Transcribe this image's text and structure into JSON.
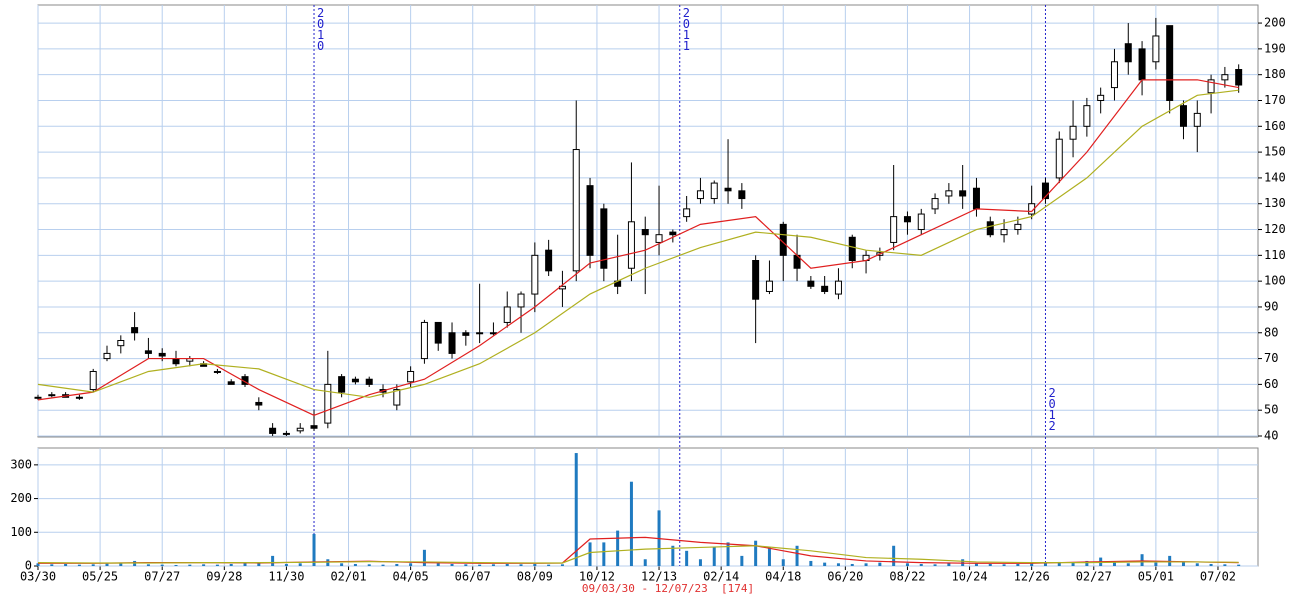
{
  "chart_data": [
    {
      "type": "candlestick",
      "grid": true,
      "up_color": "#ffffff",
      "down_color": "#000000",
      "x": [
        0,
        2,
        4,
        6,
        8,
        10,
        12,
        14,
        16,
        18,
        20,
        22,
        24,
        26,
        28,
        30,
        32,
        34,
        36,
        38,
        40,
        42,
        44,
        46,
        48,
        50,
        52,
        54,
        56,
        58,
        60,
        62,
        64,
        66,
        68,
        70,
        72,
        74,
        76,
        78,
        80,
        82,
        84,
        86,
        88,
        90,
        92,
        94,
        96,
        98,
        100,
        102,
        104,
        106,
        108,
        110,
        112,
        114,
        116,
        118,
        120,
        122,
        124,
        126,
        128,
        130,
        132,
        134,
        136,
        138,
        140,
        142,
        144,
        146,
        148,
        150,
        152,
        154,
        156,
        158,
        160,
        162,
        164,
        166,
        168,
        170,
        172,
        174
      ],
      "open": [
        55,
        56,
        56,
        55,
        58,
        70,
        75,
        82,
        73,
        72,
        70,
        69,
        68,
        65,
        61,
        63,
        53,
        43,
        41,
        42,
        44,
        45,
        63,
        62,
        62,
        58,
        52,
        61,
        70,
        84,
        80,
        80,
        80,
        80,
        84,
        90,
        95,
        112,
        97,
        104,
        137,
        128,
        100,
        105,
        120,
        115,
        119,
        125,
        132,
        132,
        136,
        135,
        108,
        96,
        122,
        110,
        100,
        98,
        95,
        117,
        108,
        110,
        115,
        125,
        120,
        128,
        133,
        135,
        136,
        123,
        118,
        120,
        126,
        138,
        140,
        155,
        160,
        170,
        175,
        192,
        190,
        185,
        199,
        168,
        160,
        173,
        178,
        182
      ],
      "high": [
        56,
        57,
        57,
        56,
        66,
        75,
        79,
        88,
        78,
        74,
        73,
        71,
        69,
        66,
        62,
        64,
        55,
        45,
        42,
        45,
        50,
        73,
        64,
        63,
        63,
        60,
        60,
        67,
        85,
        84,
        84,
        81,
        99,
        84,
        96,
        96,
        115,
        116,
        104,
        170,
        140,
        130,
        118,
        146,
        125,
        137,
        120,
        133,
        140,
        139,
        155,
        138,
        110,
        108,
        123,
        118,
        102,
        102,
        105,
        118,
        112,
        113,
        145,
        127,
        128,
        134,
        138,
        145,
        140,
        125,
        124,
        125,
        137,
        140,
        158,
        170,
        171,
        175,
        190,
        200,
        193,
        202,
        199,
        170,
        170,
        180,
        183,
        184
      ],
      "low": [
        54,
        55,
        55,
        54,
        57,
        69,
        72,
        77,
        70,
        69,
        67,
        67,
        67,
        64,
        60,
        59,
        50,
        40,
        40,
        41,
        42,
        43,
        55,
        60,
        59,
        55,
        50,
        59,
        68,
        73,
        70,
        75,
        76,
        79,
        82,
        80,
        88,
        102,
        90,
        100,
        105,
        100,
        95,
        100,
        95,
        110,
        115,
        123,
        130,
        130,
        130,
        128,
        76,
        95,
        100,
        100,
        97,
        95,
        93,
        105,
        103,
        108,
        112,
        118,
        118,
        126,
        130,
        128,
        125,
        117,
        115,
        118,
        124,
        130,
        138,
        148,
        156,
        165,
        170,
        180,
        172,
        182,
        165,
        155,
        150,
        165,
        175,
        173
      ],
      "close": [
        55,
        56,
        55,
        55,
        65,
        72,
        77,
        80,
        72,
        71,
        68,
        70,
        67,
        65,
        60,
        60,
        52,
        41,
        41,
        43,
        43,
        60,
        57,
        61,
        60,
        57,
        58,
        65,
        84,
        76,
        72,
        79,
        80,
        80,
        90,
        95,
        110,
        104,
        98,
        151,
        110,
        105,
        98,
        123,
        118,
        118,
        118,
        128,
        135,
        138,
        135,
        132,
        93,
        100,
        110,
        105,
        98,
        96,
        100,
        108,
        110,
        111,
        125,
        123,
        126,
        132,
        135,
        133,
        128,
        118,
        120,
        122,
        130,
        132,
        155,
        160,
        168,
        172,
        185,
        185,
        178,
        195,
        170,
        160,
        165,
        178,
        180,
        176
      ],
      "moving_averages": [
        {
          "color": "#e02020",
          "x": [
            0,
            8,
            16,
            24,
            32,
            40,
            48,
            56,
            64,
            72,
            80,
            88,
            96,
            104,
            112,
            120,
            128,
            136,
            144,
            152,
            160,
            168,
            174
          ],
          "values": [
            54,
            57,
            70,
            70,
            58,
            48,
            56,
            62,
            75,
            90,
            107,
            112,
            122,
            125,
            105,
            108,
            118,
            128,
            127,
            150,
            178,
            178,
            175
          ]
        },
        {
          "color": "#b0b020",
          "x": [
            0,
            8,
            16,
            24,
            32,
            40,
            48,
            56,
            64,
            72,
            80,
            88,
            96,
            104,
            112,
            120,
            128,
            136,
            144,
            152,
            160,
            168,
            174
          ],
          "values": [
            60,
            57,
            65,
            68,
            66,
            58,
            55,
            60,
            68,
            80,
            95,
            105,
            113,
            119,
            117,
            112,
            110,
            120,
            125,
            140,
            160,
            172,
            174
          ]
        }
      ],
      "dividers": [
        {
          "x": 40,
          "label": "2010"
        },
        {
          "x": 93,
          "label": "2011"
        },
        {
          "x": 146,
          "label": "2012"
        }
      ],
      "xlim": [
        0,
        176.8
      ],
      "ylim": [
        40,
        207
      ],
      "yticks": [
        40,
        50,
        60,
        70,
        80,
        90,
        100,
        110,
        120,
        130,
        140,
        150,
        160,
        170,
        180,
        190,
        200
      ]
    },
    {
      "type": "bar",
      "color": "#1f7ac0",
      "grid": true,
      "x": [
        0,
        2,
        4,
        6,
        8,
        10,
        12,
        14,
        16,
        18,
        20,
        22,
        24,
        26,
        28,
        30,
        32,
        34,
        36,
        38,
        40,
        42,
        44,
        46,
        48,
        50,
        52,
        54,
        56,
        58,
        60,
        62,
        64,
        66,
        68,
        70,
        72,
        74,
        76,
        78,
        80,
        82,
        84,
        86,
        88,
        90,
        92,
        94,
        96,
        98,
        100,
        102,
        104,
        106,
        108,
        110,
        112,
        114,
        116,
        118,
        120,
        122,
        124,
        126,
        128,
        130,
        132,
        134,
        136,
        138,
        140,
        142,
        144,
        146,
        148,
        150,
        152,
        154,
        156,
        158,
        160,
        162,
        164,
        166,
        168,
        170,
        172,
        174
      ],
      "values": [
        8,
        5,
        6,
        4,
        5,
        7,
        9,
        15,
        5,
        4,
        3,
        4,
        5,
        4,
        6,
        8,
        10,
        30,
        6,
        8,
        95,
        20,
        8,
        6,
        5,
        4,
        6,
        8,
        48,
        8,
        6,
        5,
        4,
        5,
        6,
        5,
        6,
        4,
        5,
        335,
        70,
        70,
        105,
        250,
        20,
        165,
        60,
        45,
        20,
        55,
        70,
        30,
        75,
        55,
        20,
        60,
        15,
        10,
        8,
        6,
        8,
        10,
        60,
        8,
        6,
        5,
        10,
        20,
        8,
        6,
        5,
        6,
        8,
        10,
        12,
        10,
        15,
        25,
        12,
        8,
        35,
        10,
        30,
        12,
        8,
        6,
        5,
        4
      ],
      "moving_averages": [
        {
          "color": "#e02020",
          "x": [
            0,
            8,
            16,
            24,
            32,
            40,
            48,
            56,
            64,
            72,
            76,
            80,
            88,
            96,
            104,
            112,
            120,
            128,
            136,
            144,
            152,
            160,
            168,
            174
          ],
          "values": [
            8,
            8,
            10,
            10,
            9,
            12,
            14,
            10,
            8,
            8,
            9,
            80,
            85,
            70,
            60,
            30,
            15,
            10,
            8,
            8,
            12,
            15,
            12,
            10
          ]
        },
        {
          "color": "#b0b020",
          "x": [
            0,
            8,
            16,
            24,
            32,
            40,
            48,
            56,
            64,
            72,
            76,
            80,
            88,
            96,
            104,
            112,
            120,
            128,
            136,
            144,
            152,
            160,
            168,
            174
          ],
          "values": [
            10,
            9,
            9,
            10,
            10,
            11,
            13,
            12,
            10,
            9,
            9,
            40,
            50,
            55,
            60,
            45,
            25,
            20,
            12,
            10,
            10,
            12,
            12,
            11
          ]
        }
      ],
      "xlim": [
        0,
        176.8
      ],
      "ylim": [
        0,
        350
      ],
      "yticks": [
        0,
        100,
        200,
        300
      ],
      "xticks": [
        {
          "value": 0,
          "label": "03/30"
        },
        {
          "value": 9,
          "label": "05/25"
        },
        {
          "value": 18,
          "label": "07/27"
        },
        {
          "value": 27,
          "label": "09/28"
        },
        {
          "value": 36,
          "label": "11/30"
        },
        {
          "value": 45,
          "label": "02/01"
        },
        {
          "value": 54,
          "label": "04/05"
        },
        {
          "value": 63,
          "label": "06/07"
        },
        {
          "value": 72,
          "label": "08/09"
        },
        {
          "value": 81,
          "label": "10/12"
        },
        {
          "value": 90,
          "label": "12/13"
        },
        {
          "value": 99,
          "label": "02/14"
        },
        {
          "value": 108,
          "label": "04/18"
        },
        {
          "value": 117,
          "label": "06/20"
        },
        {
          "value": 126,
          "label": "08/22"
        },
        {
          "value": 135,
          "label": "10/24"
        },
        {
          "value": 144,
          "label": "12/26"
        },
        {
          "value": 153,
          "label": "02/27"
        },
        {
          "value": 162,
          "label": "05/01"
        },
        {
          "value": 171,
          "label": "07/02"
        }
      ],
      "subtitle": "09/03/30 - 12/07/23  [174]"
    }
  ]
}
